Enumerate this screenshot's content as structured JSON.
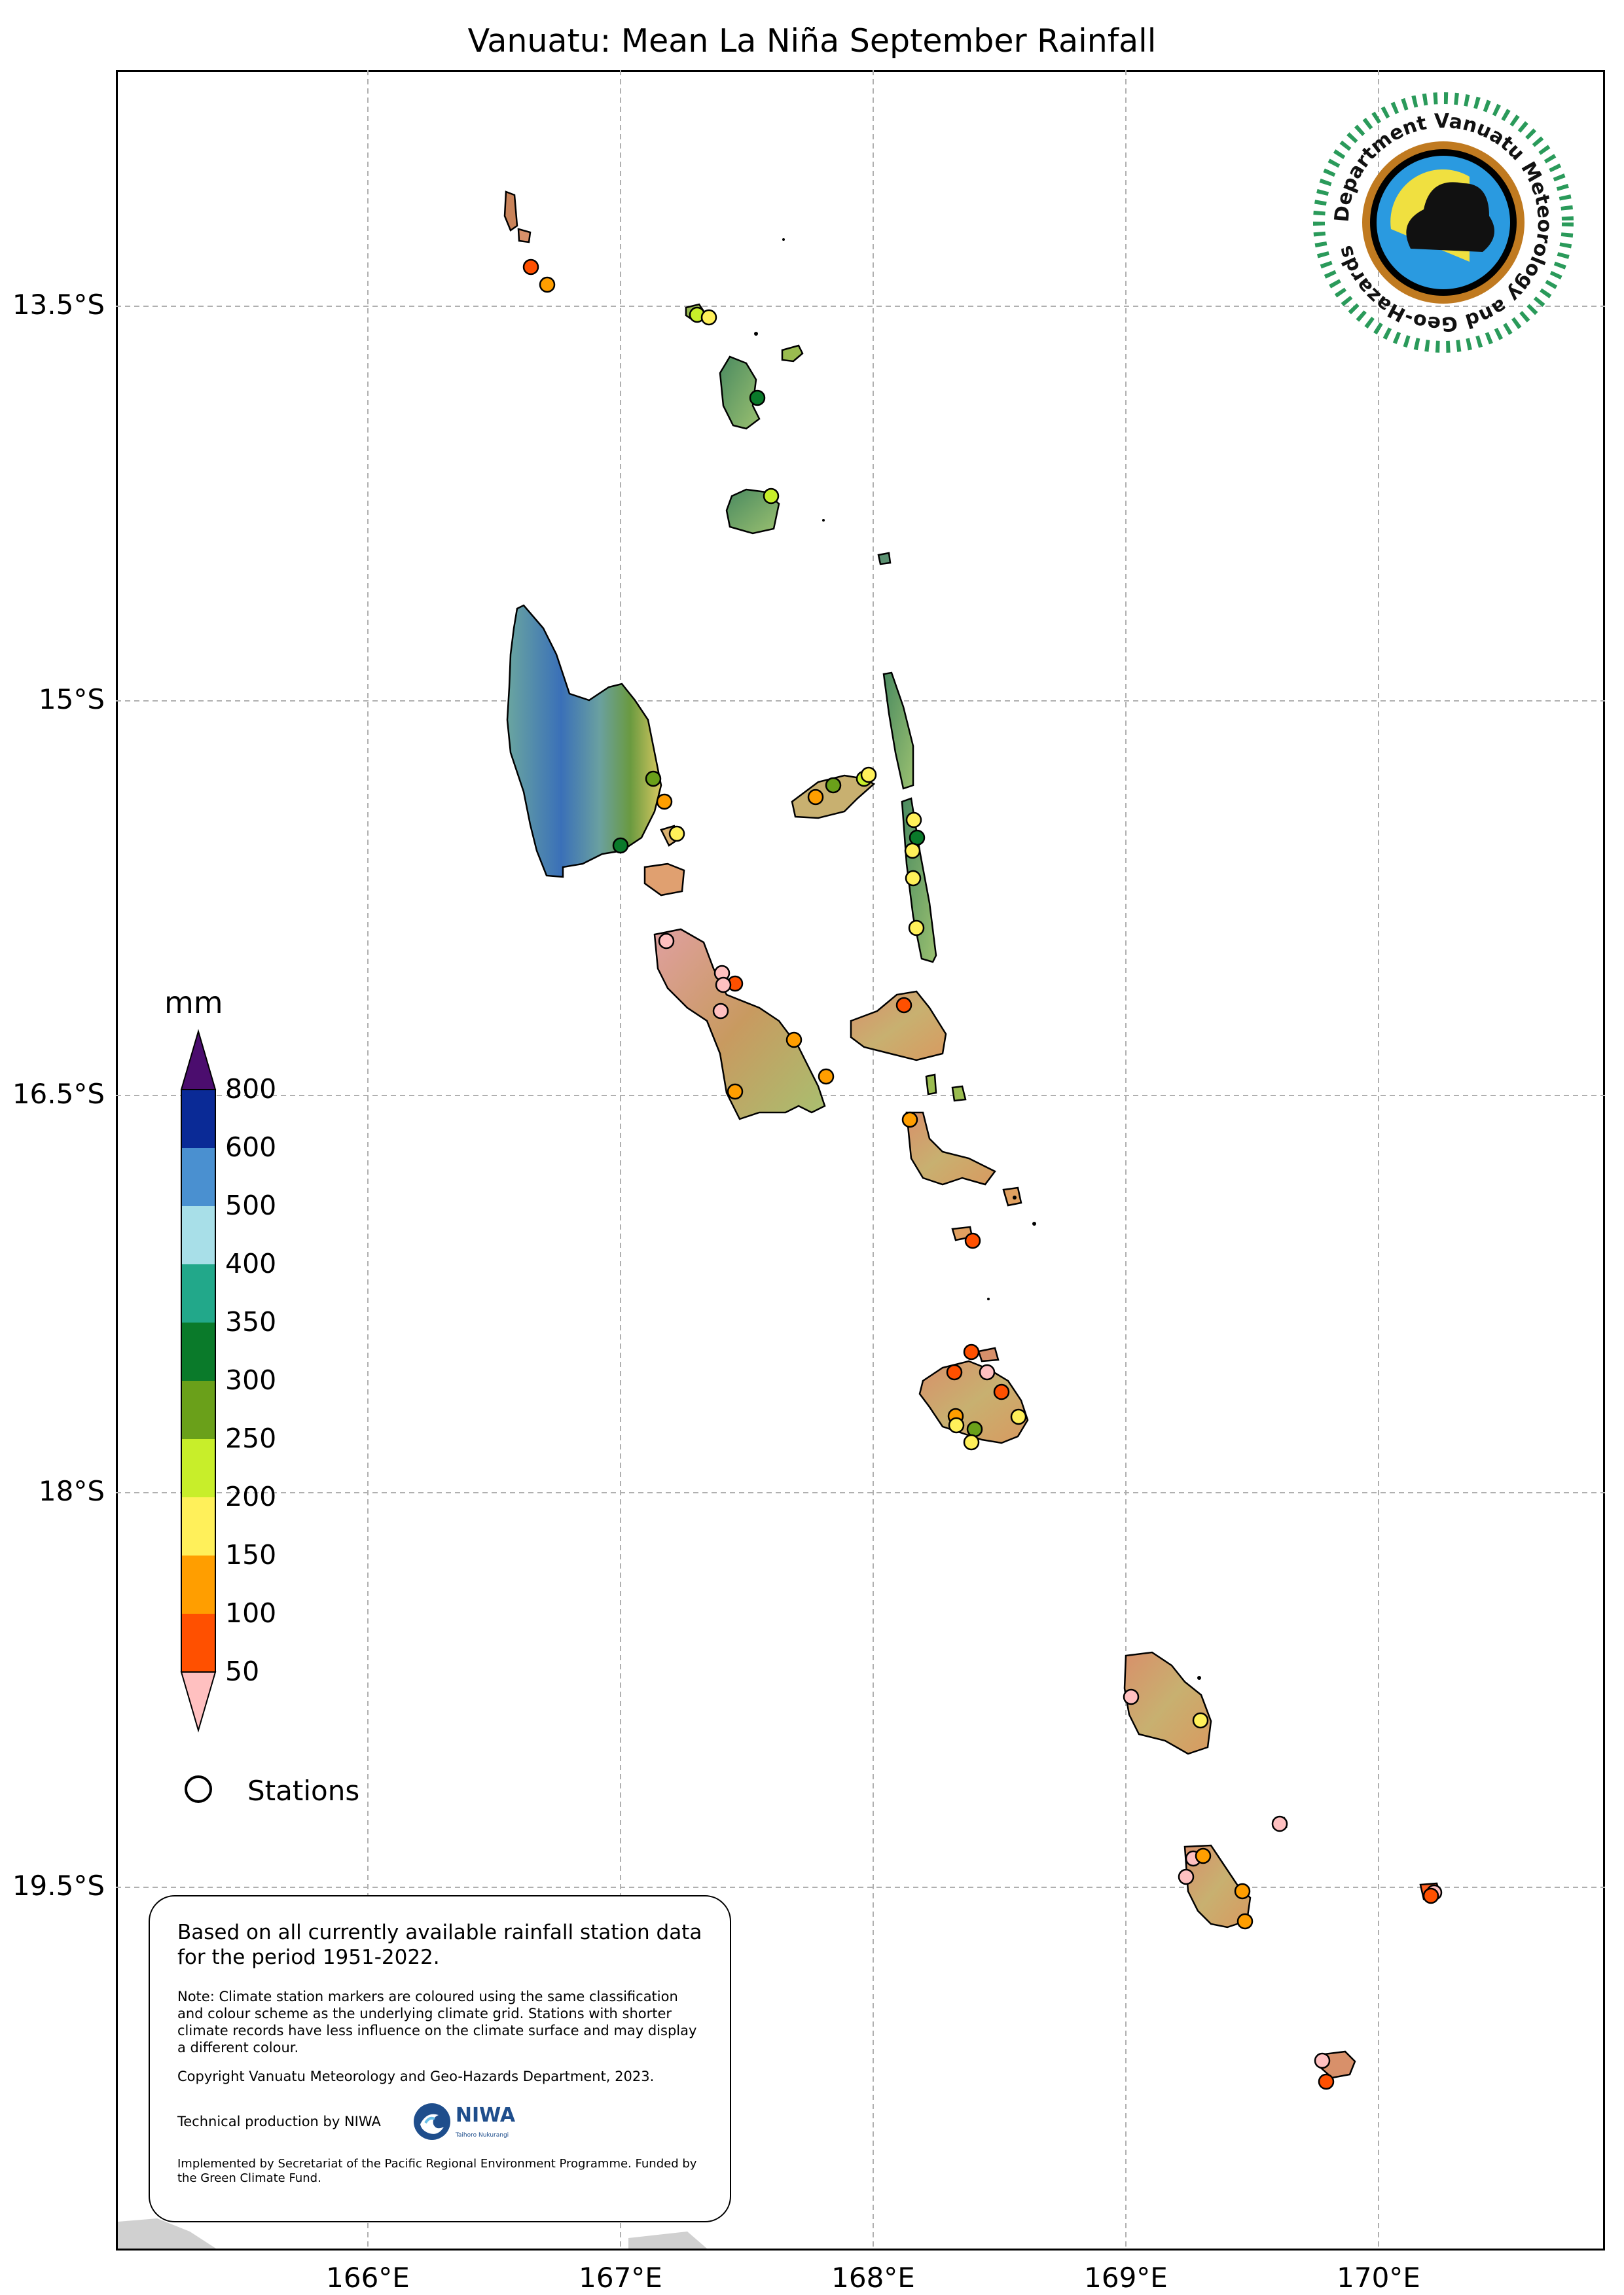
{
  "title": "Vanuatu: Mean La Niña September Rainfall",
  "axes": {
    "lat_ticks": [
      "13.5°S",
      "15°S",
      "16.5°S",
      "18°S",
      "19.5°S"
    ],
    "lon_ticks": [
      "166°E",
      "167°E",
      "168°E",
      "169°E",
      "170°E"
    ]
  },
  "legend": {
    "unit": "mm",
    "bin_labels": [
      "800",
      "600",
      "500",
      "400",
      "350",
      "300",
      "250",
      "200",
      "150",
      "100",
      "50"
    ],
    "bin_colors": [
      "#4b0d6e",
      "#0a2a96",
      "#4a90d0",
      "#a8dfe8",
      "#22a88a",
      "#0a7a2a",
      "#6aa01a",
      "#c8ee2a",
      "#fff05a",
      "#ff9e00",
      "#ff5000",
      "#ffc0c0"
    ],
    "stations_label": "Stations"
  },
  "logo": {
    "text": "Department Vanuatu Meteorology and Geo-Hazards"
  },
  "info": {
    "main": "Based on all currently available rainfall station data for the period 1951-2022.",
    "note": "Note: Climate station markers are coloured using the same classification and colour scheme as the underlying climate grid. Stations with shorter climate records have less influence on the climate surface and may display a different colour.",
    "copyright": "Copyright Vanuatu Meteorology and Geo-Hazards Department, 2023.",
    "technical": "Technical production by NIWA",
    "niwa_name": "NIWA",
    "niwa_sub": "Taihoro Nukurangi",
    "funding": "Implemented by Secretariat of the Pacific Regional Environment Programme. Funded by the Green Climate Fund."
  }
}
